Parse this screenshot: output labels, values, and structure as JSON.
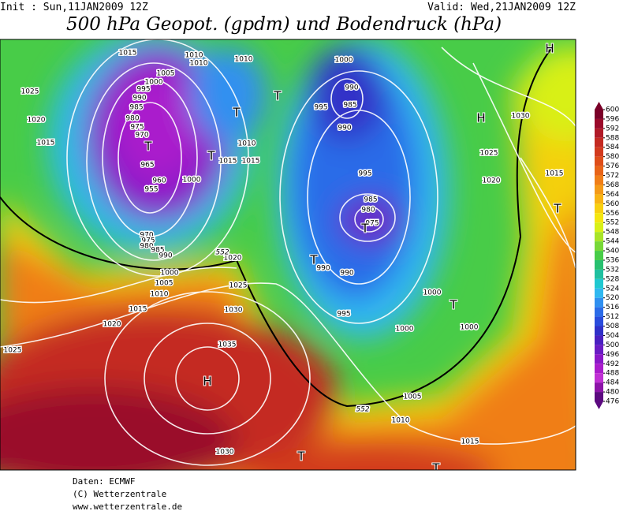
{
  "header": {
    "init": "Init : Sun,11JAN2009 12Z",
    "valid": "Valid: Wed,21JAN2009 12Z",
    "title": "500 hPa Geopot. (gpdm) und Bodendruck (hPa)"
  },
  "map": {
    "pressure_labels": [
      1015,
      1010,
      1010,
      1010,
      1005,
      1000,
      1025,
      995,
      990,
      985,
      980,
      975,
      970,
      1020,
      1015,
      965,
      960,
      955,
      1000,
      970,
      975,
      980,
      985,
      990,
      1020,
      1000,
      1005,
      1010,
      1025,
      1015,
      1030,
      1020,
      1035,
      1025,
      1030,
      1000,
      990,
      985,
      995,
      990,
      995,
      985,
      980,
      975,
      990,
      990,
      995,
      1000,
      1000,
      1000,
      1005,
      1010,
      1015,
      1030,
      1025,
      1020,
      1015,
      1010,
      1015,
      1015
    ],
    "contour_labels": [
      552,
      552
    ],
    "centers": [
      "H",
      "H",
      "H",
      "T",
      "T",
      "T",
      "T",
      "T",
      "T",
      "T",
      "T",
      "T",
      "T"
    ]
  },
  "colorbar": {
    "ticks": [
      600,
      596,
      592,
      588,
      584,
      580,
      576,
      572,
      568,
      564,
      560,
      556,
      552,
      548,
      544,
      540,
      536,
      532,
      528,
      524,
      520,
      516,
      512,
      508,
      504,
      500,
      496,
      492,
      488,
      484,
      480,
      476
    ],
    "colors": [
      "#7a0028",
      "#9a0a2a",
      "#b01a28",
      "#c42a22",
      "#d23a1e",
      "#de4e1a",
      "#e86418",
      "#f07e18",
      "#f49a18",
      "#f8b414",
      "#f8d010",
      "#f4e610",
      "#d8f018",
      "#a8e428",
      "#78d838",
      "#48cc48",
      "#28c070",
      "#20c0a0",
      "#20c8d0",
      "#30b8f0",
      "#3090f0",
      "#2c6ce8",
      "#2a4cdc",
      "#3030c8",
      "#4a20c0",
      "#6a1cc4",
      "#8a18c8",
      "#aa1ccc",
      "#c030d4",
      "#8c14a8",
      "#5c0a80"
    ]
  },
  "footer": {
    "lines": [
      "Daten: ECMWF",
      "(C) Wetterzentrale",
      "www.wetterzentrale.de"
    ]
  }
}
